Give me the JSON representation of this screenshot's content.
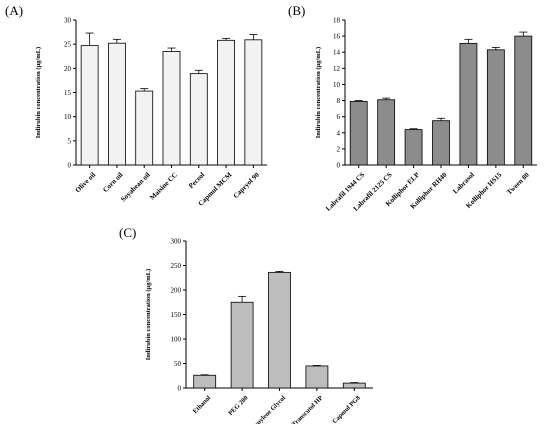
{
  "chart_data": [
    {
      "type": "bar",
      "panel": "(A)",
      "ylabel": "Indirubin concentration (μg/mL)",
      "ylim": [
        0,
        30
      ],
      "yticks": [
        "0",
        "5",
        "10",
        "15",
        "20",
        "25",
        "30"
      ],
      "categories": [
        "Olive oil",
        "Corn oil",
        "Soyabean oil",
        "Maisine CC",
        "Peceol",
        "Capmul MCM",
        "Capryol 90"
      ],
      "values": [
        24.7,
        25.2,
        15.3,
        23.5,
        18.9,
        25.8,
        25.9
      ],
      "errors": [
        2.6,
        0.8,
        0.5,
        0.7,
        0.7,
        0.4,
        1.1
      ],
      "bar_color": "#f2f2f2"
    },
    {
      "type": "bar",
      "panel": "(B)",
      "ylabel": "Indirubin concentration (μg/mL)",
      "ylim": [
        0,
        18
      ],
      "yticks": [
        "0",
        "2",
        "4",
        "6",
        "8",
        "10",
        "12",
        "14",
        "16",
        "18"
      ],
      "categories": [
        "Labrafil 1944 CS",
        "Labrafil 2125 CS",
        "Kolliphor ELP",
        "Kolliphor RH40",
        "Labrasol",
        "Kolliphor HS15",
        "Tween 80"
      ],
      "values": [
        7.9,
        8.1,
        4.4,
        5.5,
        15.1,
        14.3,
        16.0
      ],
      "errors": [
        0.1,
        0.2,
        0.1,
        0.3,
        0.5,
        0.3,
        0.5
      ],
      "bar_color": "#8c8c8c"
    },
    {
      "type": "bar",
      "panel": "(C)",
      "ylabel": "Indirubin  concentration (μg/mL)",
      "ylim": [
        0,
        300
      ],
      "yticks": [
        "0",
        "50",
        "100",
        "150",
        "200",
        "250",
        "300"
      ],
      "categories": [
        "Ethanol",
        "PEG 200",
        "Propylene Glycol",
        "Transcutol HP",
        "Capmul PG8"
      ],
      "values": [
        26,
        175,
        236,
        45,
        10
      ],
      "errors": [
        1,
        12,
        2,
        1,
        1
      ],
      "bar_color": "#bdbdbd"
    }
  ]
}
